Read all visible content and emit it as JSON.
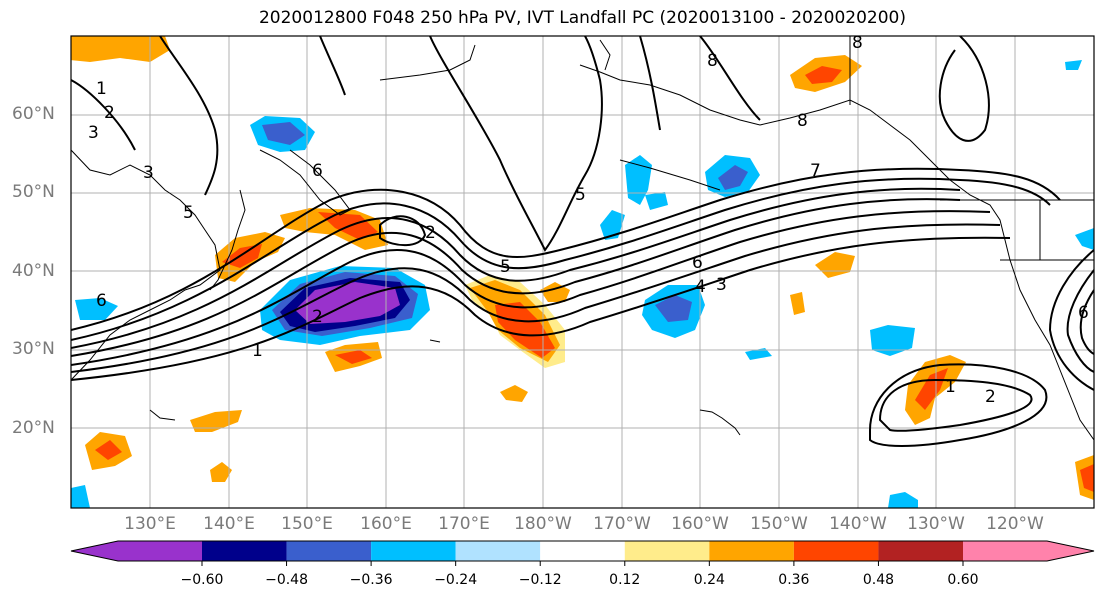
{
  "title": "2020012800 F048 250 hPa PV, IVT Landfall PC (2020013100 - 2020020200)",
  "lat_labels": [
    "60°N",
    "50°N",
    "40°N",
    "30°N",
    "20°N"
  ],
  "lon_labels": [
    "130°E",
    "140°E",
    "150°E",
    "160°E",
    "170°E",
    "180°W",
    "170°W",
    "160°W",
    "150°W",
    "140°W",
    "130°W",
    "120°W"
  ],
  "contour_labels": [
    "1",
    "2",
    "3",
    "3",
    "5",
    "6",
    "6",
    "2",
    "2",
    "1",
    "5",
    "5",
    "6",
    "4",
    "3",
    "7",
    "8",
    "8",
    "8",
    "1",
    "2",
    "6"
  ],
  "colorbar": {
    "ticks": [
      "−0.60",
      "−0.48",
      "−0.36",
      "−0.24",
      "−0.12",
      "0.12",
      "0.24",
      "0.36",
      "0.48",
      "0.60"
    ],
    "colors": [
      "#9932cc",
      "#00008b",
      "#3a5fcd",
      "#00bfff",
      "#b0e2ff",
      "#ffffff",
      "#ffec8b",
      "#ffa500",
      "#ff4500",
      "#b22222",
      "#ff82ab"
    ]
  },
  "colors": {
    "grid": "#b0b0b0",
    "contour": "#000000",
    "label": "#7a7a7a"
  }
}
